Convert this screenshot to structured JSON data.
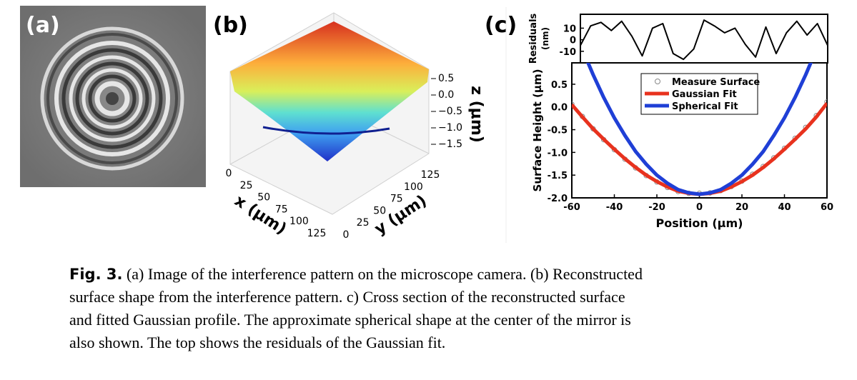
{
  "panel_a": {
    "label": "(a)"
  },
  "panel_b": {
    "label": "(b)",
    "x_label": "x (μm)",
    "y_label": "y (μm)",
    "z_label": "z (μm)",
    "xticks": [
      0,
      25,
      50,
      75,
      100,
      125
    ],
    "yticks": [
      0,
      25,
      50,
      75,
      100,
      125
    ],
    "zticks": [
      {
        "value": 0.5,
        "label": "0.5"
      },
      {
        "value": 0,
        "label": "0.0"
      },
      {
        "value": -0.5,
        "label": "−0.5"
      },
      {
        "value": -1,
        "label": "−1.0"
      },
      {
        "value": -1.5,
        "label": "−1.5"
      }
    ]
  },
  "panel_c": {
    "label": "(c)",
    "chart_data": [
      {
        "type": "line",
        "ylabel": [
          "Residuals",
          "(nm)"
        ],
        "x": [
          -60,
          -55,
          -50,
          -45,
          -40,
          -35,
          -30,
          -25,
          -20,
          -15,
          -10,
          -5,
          0,
          5,
          10,
          15,
          20,
          25,
          30,
          35,
          40,
          45,
          50,
          55,
          60
        ],
        "series": [
          {
            "color": "#000000",
            "values": [
              -5,
              12,
              15,
              8,
              16,
              3,
              -14,
              10,
              14,
              -12,
              -17,
              -8,
              17,
              12,
              6,
              10,
              -4,
              -15,
              11,
              -12,
              6,
              16,
              4,
              14,
              -5
            ]
          }
        ],
        "xlim": [
          -60,
          60
        ],
        "ylim": [
          -20,
          22
        ],
        "yticks": [
          10,
          0,
          -10
        ]
      },
      {
        "type": "line",
        "xlabel": "Position (μm)",
        "ylabel": "Surface Height (μm)",
        "xlim": [
          -60,
          60
        ],
        "ylim": [
          -2.0,
          0.97
        ],
        "xticks": [
          -60,
          -40,
          -20,
          0,
          20,
          40,
          60
        ],
        "yticks": [
          {
            "value": 0.5,
            "label": "0.5"
          },
          {
            "value": 0,
            "label": "0.0"
          },
          {
            "value": -0.5,
            "label": "-0.5"
          },
          {
            "value": -1,
            "label": "-1.0"
          },
          {
            "value": -1.5,
            "label": "-1.5"
          },
          {
            "value": -2,
            "label": "-2.0"
          }
        ],
        "series": [
          {
            "name": "Measure Surface",
            "color": "#888888",
            "marker": "circle",
            "x": [
              -60,
              -55,
              -50,
              -45,
              -40,
              -35,
              -30,
              -25,
              -20,
              -15,
              -10,
              -5,
              0,
              5,
              10,
              15,
              20,
              25,
              30,
              35,
              40,
              45,
              50,
              55,
              60
            ],
            "values": [
              0.06,
              -0.21,
              -0.48,
              -0.72,
              -0.94,
              -1.15,
              -1.34,
              -1.51,
              -1.65,
              -1.77,
              -1.86,
              -1.9,
              -1.9,
              -1.89,
              -1.84,
              -1.75,
              -1.63,
              -1.48,
              -1.31,
              -1.12,
              -0.91,
              -0.69,
              -0.45,
              -0.19,
              0.11
            ]
          },
          {
            "name": "Gaussian Fit",
            "color": "#e8321e",
            "marker": "line",
            "x": [
              -60,
              -55,
              -50,
              -45,
              -40,
              -35,
              -30,
              -25,
              -20,
              -15,
              -10,
              -5,
              0,
              5,
              10,
              15,
              20,
              25,
              30,
              35,
              40,
              45,
              50,
              55,
              60
            ],
            "values": [
              0.05,
              -0.22,
              -0.48,
              -0.71,
              -0.93,
              -1.14,
              -1.33,
              -1.5,
              -1.64,
              -1.76,
              -1.85,
              -1.9,
              -1.92,
              -1.9,
              -1.85,
              -1.76,
              -1.64,
              -1.5,
              -1.33,
              -1.14,
              -0.93,
              -0.71,
              -0.48,
              -0.22,
              0.08
            ]
          },
          {
            "name": "Spherical Fit",
            "color": "#1f3fd6",
            "marker": "line",
            "x": [
              -55,
              -50,
              -45,
              -40,
              -35,
              -30,
              -25,
              -20,
              -15,
              -10,
              -5,
              0,
              5,
              10,
              15,
              20,
              25,
              30,
              35,
              40,
              45,
              50,
              55
            ],
            "values": [
              1.26,
              0.71,
              0.21,
              -0.24,
              -0.63,
              -0.98,
              -1.26,
              -1.5,
              -1.68,
              -1.82,
              -1.89,
              -1.92,
              -1.89,
              -1.82,
              -1.68,
              -1.5,
              -1.26,
              -0.98,
              -0.63,
              -0.24,
              0.21,
              0.71,
              1.26
            ]
          }
        ]
      }
    ]
  },
  "caption": {
    "label": "Fig. 3.",
    "lines": [
      " (a) Image of the interference pattern on the microscope camera. (b) Reconstructed",
      "surface shape from the interference pattern. c) Cross section of the reconstructed surface",
      "and fitted Gaussian profile. The approximate spherical shape at the center of the mirror is",
      "also shown. The top shows the residuals of the Gaussian fit."
    ]
  }
}
